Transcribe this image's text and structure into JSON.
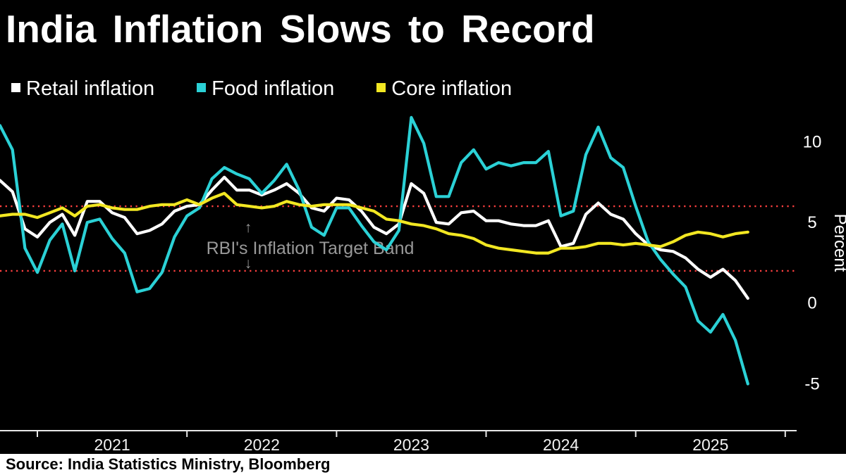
{
  "title": "India Inflation Slows to Record",
  "source": "Source: India Statistics Ministry, Bloomberg",
  "legend": [
    {
      "label": "Retail inflation",
      "color": "#ffffff"
    },
    {
      "label": "Food inflation",
      "color": "#2bd1d6"
    },
    {
      "label": "Core inflation",
      "color": "#f2e722"
    }
  ],
  "annotation": {
    "text": "RBI's Inflation Target Band",
    "up_arrow": "↑",
    "down_arrow": "↓"
  },
  "axis": {
    "percent_label": "Percent",
    "y_ticks": [
      10,
      5,
      0,
      -5
    ],
    "years": [
      "2021",
      "2022",
      "2023",
      "2024",
      "2025"
    ]
  },
  "chart_data": {
    "type": "line",
    "x_start": "2020-10",
    "x_end": "2025-10",
    "x_frequency": "monthly",
    "ylim": [
      -7.9,
      11.8
    ],
    "target_band": {
      "low": 2,
      "high": 6,
      "color": "#ff4040",
      "style": "dotted"
    },
    "series": [
      {
        "name": "Retail inflation",
        "color": "#ffffff",
        "values": [
          7.6,
          6.9,
          4.6,
          4.1,
          5.0,
          5.5,
          4.2,
          6.3,
          6.3,
          5.6,
          5.3,
          4.3,
          4.5,
          4.9,
          5.7,
          6.0,
          6.1,
          7.0,
          7.8,
          7.0,
          7.0,
          6.7,
          7.0,
          7.4,
          6.8,
          5.9,
          5.7,
          6.5,
          6.4,
          5.7,
          4.7,
          4.3,
          4.9,
          7.4,
          6.8,
          5.0,
          4.9,
          5.6,
          5.7,
          5.1,
          5.1,
          4.9,
          4.8,
          4.8,
          5.1,
          3.5,
          3.7,
          5.5,
          6.2,
          5.5,
          5.2,
          4.3,
          3.6,
          3.3,
          3.2,
          2.8,
          2.1,
          1.6,
          2.1,
          1.4,
          0.3
        ]
      },
      {
        "name": "Food inflation",
        "color": "#2bd1d6",
        "values": [
          11.0,
          9.5,
          3.4,
          1.9,
          3.9,
          4.9,
          2.0,
          5.0,
          5.2,
          4.0,
          3.1,
          0.7,
          0.9,
          1.9,
          4.1,
          5.4,
          5.9,
          7.7,
          8.4,
          8.0,
          7.7,
          6.8,
          7.6,
          8.6,
          7.0,
          4.7,
          4.2,
          5.9,
          5.9,
          4.8,
          3.8,
          3.3,
          4.5,
          11.5,
          9.9,
          6.6,
          6.6,
          8.7,
          9.5,
          8.3,
          8.7,
          8.5,
          8.7,
          8.7,
          9.4,
          5.4,
          5.7,
          9.2,
          10.9,
          9.0,
          8.4,
          6.0,
          3.8,
          2.7,
          1.8,
          1.0,
          -1.1,
          -1.8,
          -0.7,
          -2.3,
          -5.0
        ]
      },
      {
        "name": "Core inflation",
        "color": "#f2e722",
        "values": [
          5.4,
          5.5,
          5.5,
          5.3,
          5.6,
          5.9,
          5.4,
          6.0,
          6.1,
          5.9,
          5.8,
          5.8,
          6.0,
          6.1,
          6.1,
          6.4,
          6.1,
          6.5,
          6.8,
          6.1,
          6.0,
          5.9,
          6.0,
          6.3,
          6.1,
          6.0,
          6.1,
          6.1,
          6.1,
          5.9,
          5.7,
          5.2,
          5.1,
          4.9,
          4.8,
          4.6,
          4.3,
          4.2,
          4.0,
          3.6,
          3.4,
          3.3,
          3.2,
          3.1,
          3.1,
          3.4,
          3.4,
          3.5,
          3.7,
          3.7,
          3.6,
          3.7,
          3.6,
          3.5,
          3.8,
          4.2,
          4.4,
          4.3,
          4.1,
          4.3,
          4.4
        ]
      }
    ]
  }
}
